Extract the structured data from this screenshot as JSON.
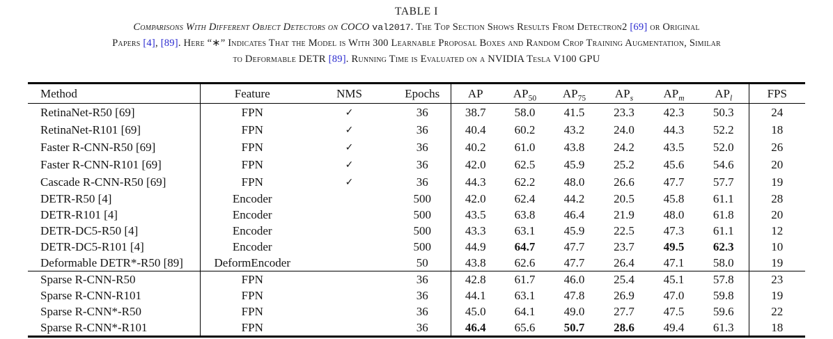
{
  "colors": {
    "cite_link": "#2b2bd0",
    "text": "#141414"
  },
  "caption": {
    "label": "TABLE I",
    "lines": [
      [
        {
          "t": "Comparisons With Different Object Detectors on COCO ",
          "style": "italic"
        },
        {
          "t": "val2017",
          "style": "mono"
        },
        {
          "t": ". The Top Section Shows Results From Detectron2 ",
          "style": "text"
        },
        {
          "t": "[69]",
          "style": "cite"
        },
        {
          "t": " or Original",
          "style": "text"
        }
      ],
      [
        {
          "t": "Papers ",
          "style": "text"
        },
        {
          "t": "[4]",
          "style": "cite"
        },
        {
          "t": ", ",
          "style": "text"
        },
        {
          "t": "[89]",
          "style": "cite"
        },
        {
          "t": ". Here “∗” Indicates That the Model is With 300 Learnable Proposal Boxes and Random Crop Training Augmentation, Similar",
          "style": "text"
        }
      ],
      [
        {
          "t": "to Deformable DETR ",
          "style": "text"
        },
        {
          "t": "[89]",
          "style": "cite"
        },
        {
          "t": ". Running Time is Evaluated on a NVIDIA Tesla V100 GPU",
          "style": "text"
        }
      ]
    ]
  },
  "table": {
    "columns": [
      {
        "key": "method",
        "label": "Method",
        "align": "left"
      },
      {
        "key": "feature",
        "label": "Feature"
      },
      {
        "key": "nms",
        "label": "NMS"
      },
      {
        "key": "epochs",
        "label": "Epochs"
      },
      {
        "key": "ap",
        "label": "AP"
      },
      {
        "key": "ap50",
        "label": "AP",
        "sub": "50"
      },
      {
        "key": "ap75",
        "label": "AP",
        "sub": "75"
      },
      {
        "key": "aps",
        "label": "AP",
        "sub": "s",
        "sub_italic": true
      },
      {
        "key": "apm",
        "label": "AP",
        "sub": "m",
        "sub_italic": true
      },
      {
        "key": "apl",
        "label": "AP",
        "sub": "l",
        "sub_italic": true
      },
      {
        "key": "fps",
        "label": "FPS"
      }
    ],
    "rows": [
      {
        "group": 1,
        "cells": [
          "RetinaNet-R50 [69]",
          "FPN",
          "✓",
          "36",
          "38.7",
          "58.0",
          "41.5",
          "23.3",
          "42.3",
          "50.3",
          "24"
        ],
        "bold": []
      },
      {
        "group": 1,
        "cells": [
          "RetinaNet-R101 [69]",
          "FPN",
          "✓",
          "36",
          "40.4",
          "60.2",
          "43.2",
          "24.0",
          "44.3",
          "52.2",
          "18"
        ],
        "bold": []
      },
      {
        "group": 1,
        "cells": [
          "Faster R-CNN-R50 [69]",
          "FPN",
          "✓",
          "36",
          "40.2",
          "61.0",
          "43.8",
          "24.2",
          "43.5",
          "52.0",
          "26"
        ],
        "bold": []
      },
      {
        "group": 1,
        "cells": [
          "Faster R-CNN-R101 [69]",
          "FPN",
          "✓",
          "36",
          "42.0",
          "62.5",
          "45.9",
          "25.2",
          "45.6",
          "54.6",
          "20"
        ],
        "bold": []
      },
      {
        "group": 1,
        "cells": [
          "Cascade R-CNN-R50 [69]",
          "FPN",
          "✓",
          "36",
          "44.3",
          "62.2",
          "48.0",
          "26.6",
          "47.7",
          "57.7",
          "19"
        ],
        "bold": []
      },
      {
        "group": 1,
        "cells": [
          "DETR-R50 [4]",
          "Encoder",
          "",
          "500",
          "42.0",
          "62.4",
          "44.2",
          "20.5",
          "45.8",
          "61.1",
          "28"
        ],
        "bold": []
      },
      {
        "group": 1,
        "cells": [
          "DETR-R101 [4]",
          "Encoder",
          "",
          "500",
          "43.5",
          "63.8",
          "46.4",
          "21.9",
          "48.0",
          "61.8",
          "20"
        ],
        "bold": []
      },
      {
        "group": 1,
        "cells": [
          "DETR-DC5-R50 [4]",
          "Encoder",
          "",
          "500",
          "43.3",
          "63.1",
          "45.9",
          "22.5",
          "47.3",
          "61.1",
          "12"
        ],
        "bold": []
      },
      {
        "group": 1,
        "cells": [
          "DETR-DC5-R101 [4]",
          "Encoder",
          "",
          "500",
          "44.9",
          "64.7",
          "47.7",
          "23.7",
          "49.5",
          "62.3",
          "10"
        ],
        "bold": [
          5,
          8,
          9
        ]
      },
      {
        "group": 1,
        "cells": [
          "Deformable DETR*-R50 [89]",
          "DeformEncoder",
          "",
          "50",
          "43.8",
          "62.6",
          "47.7",
          "26.4",
          "47.1",
          "58.0",
          "19"
        ],
        "bold": []
      },
      {
        "group": 2,
        "cells": [
          "Sparse R-CNN-R50",
          "FPN",
          "",
          "36",
          "42.8",
          "61.7",
          "46.0",
          "25.4",
          "45.1",
          "57.8",
          "23"
        ],
        "bold": []
      },
      {
        "group": 2,
        "cells": [
          "Sparse R-CNN-R101",
          "FPN",
          "",
          "36",
          "44.1",
          "63.1",
          "47.8",
          "26.9",
          "47.0",
          "59.8",
          "19"
        ],
        "bold": []
      },
      {
        "group": 2,
        "cells": [
          "Sparse R-CNN*-R50",
          "FPN",
          "",
          "36",
          "45.0",
          "64.1",
          "49.0",
          "27.7",
          "47.5",
          "59.6",
          "22"
        ],
        "bold": []
      },
      {
        "group": 2,
        "cells": [
          "Sparse R-CNN*-R101",
          "FPN",
          "",
          "36",
          "46.4",
          "65.6",
          "50.7",
          "28.6",
          "49.4",
          "61.3",
          "18"
        ],
        "bold": [
          4,
          6,
          7
        ]
      }
    ]
  }
}
